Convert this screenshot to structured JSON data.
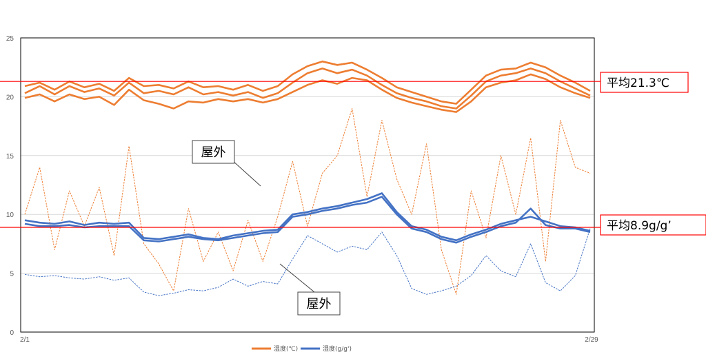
{
  "chart_data": {
    "type": "line",
    "x_start_label": "2/1",
    "x_end_label": "2/29",
    "ylim": [
      0,
      25
    ],
    "yticks": [
      0,
      5,
      10,
      15,
      20,
      25
    ],
    "grid": true,
    "legend_position": "bottom",
    "legend": [
      {
        "label": "温度(℃)",
        "color": "#ED7D31"
      },
      {
        "label": "湿度(g/g')",
        "color": "#4472C4"
      }
    ],
    "reference_lines": [
      {
        "label": "平均21.3℃",
        "value": 21.3,
        "color": "#FF0000"
      },
      {
        "label": "平均8.9g/g’",
        "value": 8.9,
        "color": "#FF0000"
      }
    ],
    "callouts": [
      {
        "label": "屋外",
        "target_series": "outdoor-temperature"
      },
      {
        "label": "屋外",
        "target_series": "outdoor-humidity"
      }
    ],
    "series": [
      {
        "id": "indoor-temp-a",
        "color": "#ED7D31",
        "style": "solid",
        "values": [
          20.9,
          21.2,
          20.6,
          21.3,
          20.8,
          21.1,
          20.5,
          21.6,
          20.9,
          21.0,
          20.7,
          21.3,
          20.8,
          20.9,
          20.6,
          21.0,
          20.5,
          20.9,
          21.9,
          22.6,
          23.0,
          22.7,
          22.9,
          22.3,
          21.6,
          20.8,
          20.4,
          20.0,
          19.6,
          19.4,
          20.6,
          21.8,
          22.3,
          22.4,
          22.9,
          22.5,
          21.8,
          21.2,
          20.5
        ]
      },
      {
        "id": "indoor-temp-b",
        "color": "#ED7D31",
        "style": "solid",
        "values": [
          20.3,
          20.9,
          20.2,
          20.9,
          20.4,
          20.7,
          20.1,
          21.2,
          20.3,
          20.5,
          20.2,
          20.8,
          20.2,
          20.4,
          20.1,
          20.4,
          19.9,
          20.3,
          21.2,
          22.0,
          22.4,
          22.0,
          22.3,
          21.8,
          21.0,
          20.3,
          19.9,
          19.6,
          19.2,
          19.0,
          20.1,
          21.3,
          21.8,
          22.0,
          22.4,
          22.0,
          21.3,
          20.7,
          20.1
        ]
      },
      {
        "id": "indoor-temp-c",
        "color": "#ED7D31",
        "style": "solid",
        "values": [
          19.9,
          20.2,
          19.6,
          20.2,
          19.8,
          20.0,
          19.3,
          20.6,
          19.7,
          19.4,
          19.0,
          19.6,
          19.5,
          19.8,
          19.6,
          19.8,
          19.5,
          19.8,
          20.4,
          21.0,
          21.4,
          21.1,
          21.6,
          21.4,
          20.6,
          19.9,
          19.5,
          19.2,
          18.9,
          18.7,
          19.6,
          20.8,
          21.2,
          21.4,
          21.9,
          21.5,
          20.8,
          20.3,
          19.9
        ]
      },
      {
        "id": "outdoor-temperature",
        "color": "#ED7D31",
        "style": "dashed",
        "values": [
          10.0,
          14.0,
          7.0,
          12.0,
          9.0,
          12.3,
          6.5,
          15.8,
          7.5,
          5.8,
          3.5,
          10.5,
          6.0,
          8.5,
          5.2,
          9.5,
          6.0,
          9.8,
          14.5,
          9.0,
          13.5,
          15.0,
          19.0,
          11.5,
          18.0,
          13.0,
          10.0,
          16.0,
          7.0,
          3.2,
          12.0,
          8.0,
          15.0,
          10.0,
          16.5,
          6.0,
          18.0,
          14.0,
          13.5
        ]
      },
      {
        "id": "indoor-humidity-a",
        "color": "#4472C4",
        "style": "solid",
        "values": [
          9.5,
          9.3,
          9.2,
          9.4,
          9.1,
          9.3,
          9.2,
          9.3,
          8.0,
          7.9,
          8.1,
          8.3,
          8.0,
          7.9,
          8.2,
          8.4,
          8.6,
          8.7,
          10.0,
          10.2,
          10.5,
          10.7,
          11.0,
          11.3,
          11.8,
          10.2,
          9.0,
          8.7,
          8.1,
          7.8,
          8.3,
          8.7,
          9.2,
          9.5,
          9.8,
          9.4,
          9.0,
          8.9,
          8.6
        ]
      },
      {
        "id": "indoor-humidity-b",
        "color": "#4472C4",
        "style": "solid",
        "values": [
          9.2,
          9.0,
          9.0,
          9.1,
          8.9,
          9.0,
          9.0,
          9.0,
          7.8,
          7.7,
          7.9,
          8.1,
          7.9,
          7.8,
          8.0,
          8.2,
          8.4,
          8.5,
          9.8,
          10.0,
          10.3,
          10.5,
          10.8,
          11.0,
          11.5,
          10.0,
          8.8,
          8.5,
          7.9,
          7.6,
          8.1,
          8.5,
          9.0,
          9.3,
          10.5,
          9.1,
          8.8,
          8.8,
          8.5
        ]
      },
      {
        "id": "outdoor-humidity",
        "color": "#4472C4",
        "style": "dashed",
        "values": [
          4.9,
          4.7,
          4.8,
          4.6,
          4.5,
          4.7,
          4.4,
          4.6,
          3.4,
          3.1,
          3.3,
          3.6,
          3.5,
          3.8,
          4.5,
          3.9,
          4.3,
          4.1,
          6.2,
          8.2,
          7.5,
          6.8,
          7.3,
          7.0,
          8.5,
          6.5,
          3.7,
          3.2,
          3.5,
          3.9,
          4.8,
          6.5,
          5.2,
          4.7,
          7.5,
          4.2,
          3.5,
          4.8,
          8.8
        ]
      }
    ]
  }
}
